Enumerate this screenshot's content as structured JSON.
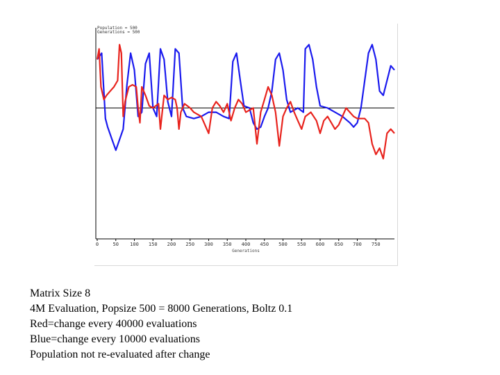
{
  "chart_data": {
    "type": "line",
    "title": "",
    "xlabel": "Generations",
    "ylabel": "",
    "xlim": [
      0,
      800
    ],
    "ylim": [
      0,
      100
    ],
    "reference_line_y": 62,
    "x_ticks": [
      0,
      50,
      100,
      150,
      200,
      250,
      300,
      350,
      400,
      450,
      500,
      550,
      600,
      650,
      700,
      750
    ],
    "x_tick_labels": [
      "0",
      "50",
      "100",
      "150",
      "200",
      "250",
      "300",
      "350",
      "400",
      "450",
      "500",
      "550",
      "600",
      "650",
      "700",
      "750"
    ],
    "legend": {
      "position": "top-left",
      "entries": [
        "Population = 500",
        "Generations = 500",
        "",
        "",
        "",
        ""
      ]
    },
    "series": [
      {
        "name": "change every 10000 evaluations",
        "color": "#1a1aee",
        "points": [
          [
            0,
            85
          ],
          [
            12,
            88
          ],
          [
            22,
            57
          ],
          [
            28,
            53
          ],
          [
            40,
            47
          ],
          [
            50,
            42
          ],
          [
            60,
            47
          ],
          [
            70,
            52
          ],
          [
            80,
            73
          ],
          [
            90,
            88
          ],
          [
            100,
            80
          ],
          [
            110,
            58
          ],
          [
            120,
            60
          ],
          [
            130,
            83
          ],
          [
            140,
            88
          ],
          [
            150,
            62
          ],
          [
            160,
            58
          ],
          [
            170,
            90
          ],
          [
            180,
            85
          ],
          [
            190,
            65
          ],
          [
            200,
            58
          ],
          [
            210,
            90
          ],
          [
            220,
            88
          ],
          [
            230,
            62
          ],
          [
            240,
            58
          ],
          [
            260,
            57
          ],
          [
            280,
            58
          ],
          [
            300,
            60
          ],
          [
            320,
            60
          ],
          [
            340,
            58
          ],
          [
            355,
            57
          ],
          [
            365,
            84
          ],
          [
            375,
            88
          ],
          [
            385,
            75
          ],
          [
            395,
            63
          ],
          [
            410,
            62
          ],
          [
            420,
            55
          ],
          [
            430,
            52
          ],
          [
            440,
            53
          ],
          [
            450,
            58
          ],
          [
            460,
            62
          ],
          [
            470,
            70
          ],
          [
            480,
            85
          ],
          [
            490,
            88
          ],
          [
            500,
            80
          ],
          [
            510,
            66
          ],
          [
            520,
            60
          ],
          [
            540,
            62
          ],
          [
            555,
            60
          ],
          [
            560,
            90
          ],
          [
            570,
            92
          ],
          [
            580,
            85
          ],
          [
            590,
            72
          ],
          [
            600,
            63
          ],
          [
            620,
            62
          ],
          [
            640,
            60
          ],
          [
            660,
            58
          ],
          [
            680,
            55
          ],
          [
            690,
            53
          ],
          [
            700,
            55
          ],
          [
            710,
            62
          ],
          [
            720,
            75
          ],
          [
            730,
            88
          ],
          [
            740,
            92
          ],
          [
            750,
            85
          ],
          [
            760,
            70
          ],
          [
            770,
            68
          ],
          [
            780,
            75
          ],
          [
            790,
            82
          ],
          [
            800,
            80
          ]
        ]
      },
      {
        "name": "change every 40000 evaluations",
        "color": "#e8231d",
        "points": [
          [
            0,
            85
          ],
          [
            5,
            90
          ],
          [
            10,
            72
          ],
          [
            18,
            66
          ],
          [
            25,
            68
          ],
          [
            35,
            70
          ],
          [
            45,
            72
          ],
          [
            55,
            75
          ],
          [
            60,
            92
          ],
          [
            65,
            88
          ],
          [
            70,
            58
          ],
          [
            75,
            65
          ],
          [
            85,
            72
          ],
          [
            95,
            73
          ],
          [
            105,
            72
          ],
          [
            110,
            62
          ],
          [
            115,
            55
          ],
          [
            120,
            72
          ],
          [
            130,
            68
          ],
          [
            140,
            63
          ],
          [
            150,
            62
          ],
          [
            165,
            64
          ],
          [
            170,
            52
          ],
          [
            175,
            60
          ],
          [
            180,
            68
          ],
          [
            190,
            66
          ],
          [
            200,
            67
          ],
          [
            210,
            66
          ],
          [
            215,
            62
          ],
          [
            220,
            52
          ],
          [
            225,
            60
          ],
          [
            235,
            64
          ],
          [
            250,
            62
          ],
          [
            260,
            60
          ],
          [
            280,
            58
          ],
          [
            300,
            50
          ],
          [
            310,
            62
          ],
          [
            320,
            65
          ],
          [
            330,
            63
          ],
          [
            340,
            60
          ],
          [
            350,
            64
          ],
          [
            360,
            56
          ],
          [
            370,
            62
          ],
          [
            380,
            66
          ],
          [
            390,
            64
          ],
          [
            400,
            60
          ],
          [
            420,
            62
          ],
          [
            430,
            45
          ],
          [
            440,
            60
          ],
          [
            450,
            66
          ],
          [
            460,
            72
          ],
          [
            470,
            68
          ],
          [
            480,
            60
          ],
          [
            490,
            44
          ],
          [
            500,
            58
          ],
          [
            510,
            62
          ],
          [
            520,
            65
          ],
          [
            530,
            60
          ],
          [
            540,
            56
          ],
          [
            550,
            52
          ],
          [
            560,
            58
          ],
          [
            575,
            60
          ],
          [
            590,
            56
          ],
          [
            600,
            50
          ],
          [
            610,
            56
          ],
          [
            620,
            58
          ],
          [
            630,
            55
          ],
          [
            640,
            52
          ],
          [
            650,
            54
          ],
          [
            660,
            58
          ],
          [
            670,
            62
          ],
          [
            680,
            60
          ],
          [
            690,
            58
          ],
          [
            700,
            57
          ],
          [
            710,
            57
          ],
          [
            720,
            57
          ],
          [
            730,
            55
          ],
          [
            740,
            45
          ],
          [
            750,
            40
          ],
          [
            760,
            43
          ],
          [
            770,
            38
          ],
          [
            780,
            50
          ],
          [
            790,
            52
          ],
          [
            800,
            50
          ]
        ]
      }
    ]
  },
  "caption": {
    "line1": "Matrix Size 8",
    "line2": "4M Evaluation, Popsize 500 = 8000 Generations, Boltz 0.1",
    "line3": "Red=change every 40000 evaluations",
    "line4": "Blue=change every 10000 evaluations",
    "line5": "Population not re-evaluated after change"
  }
}
